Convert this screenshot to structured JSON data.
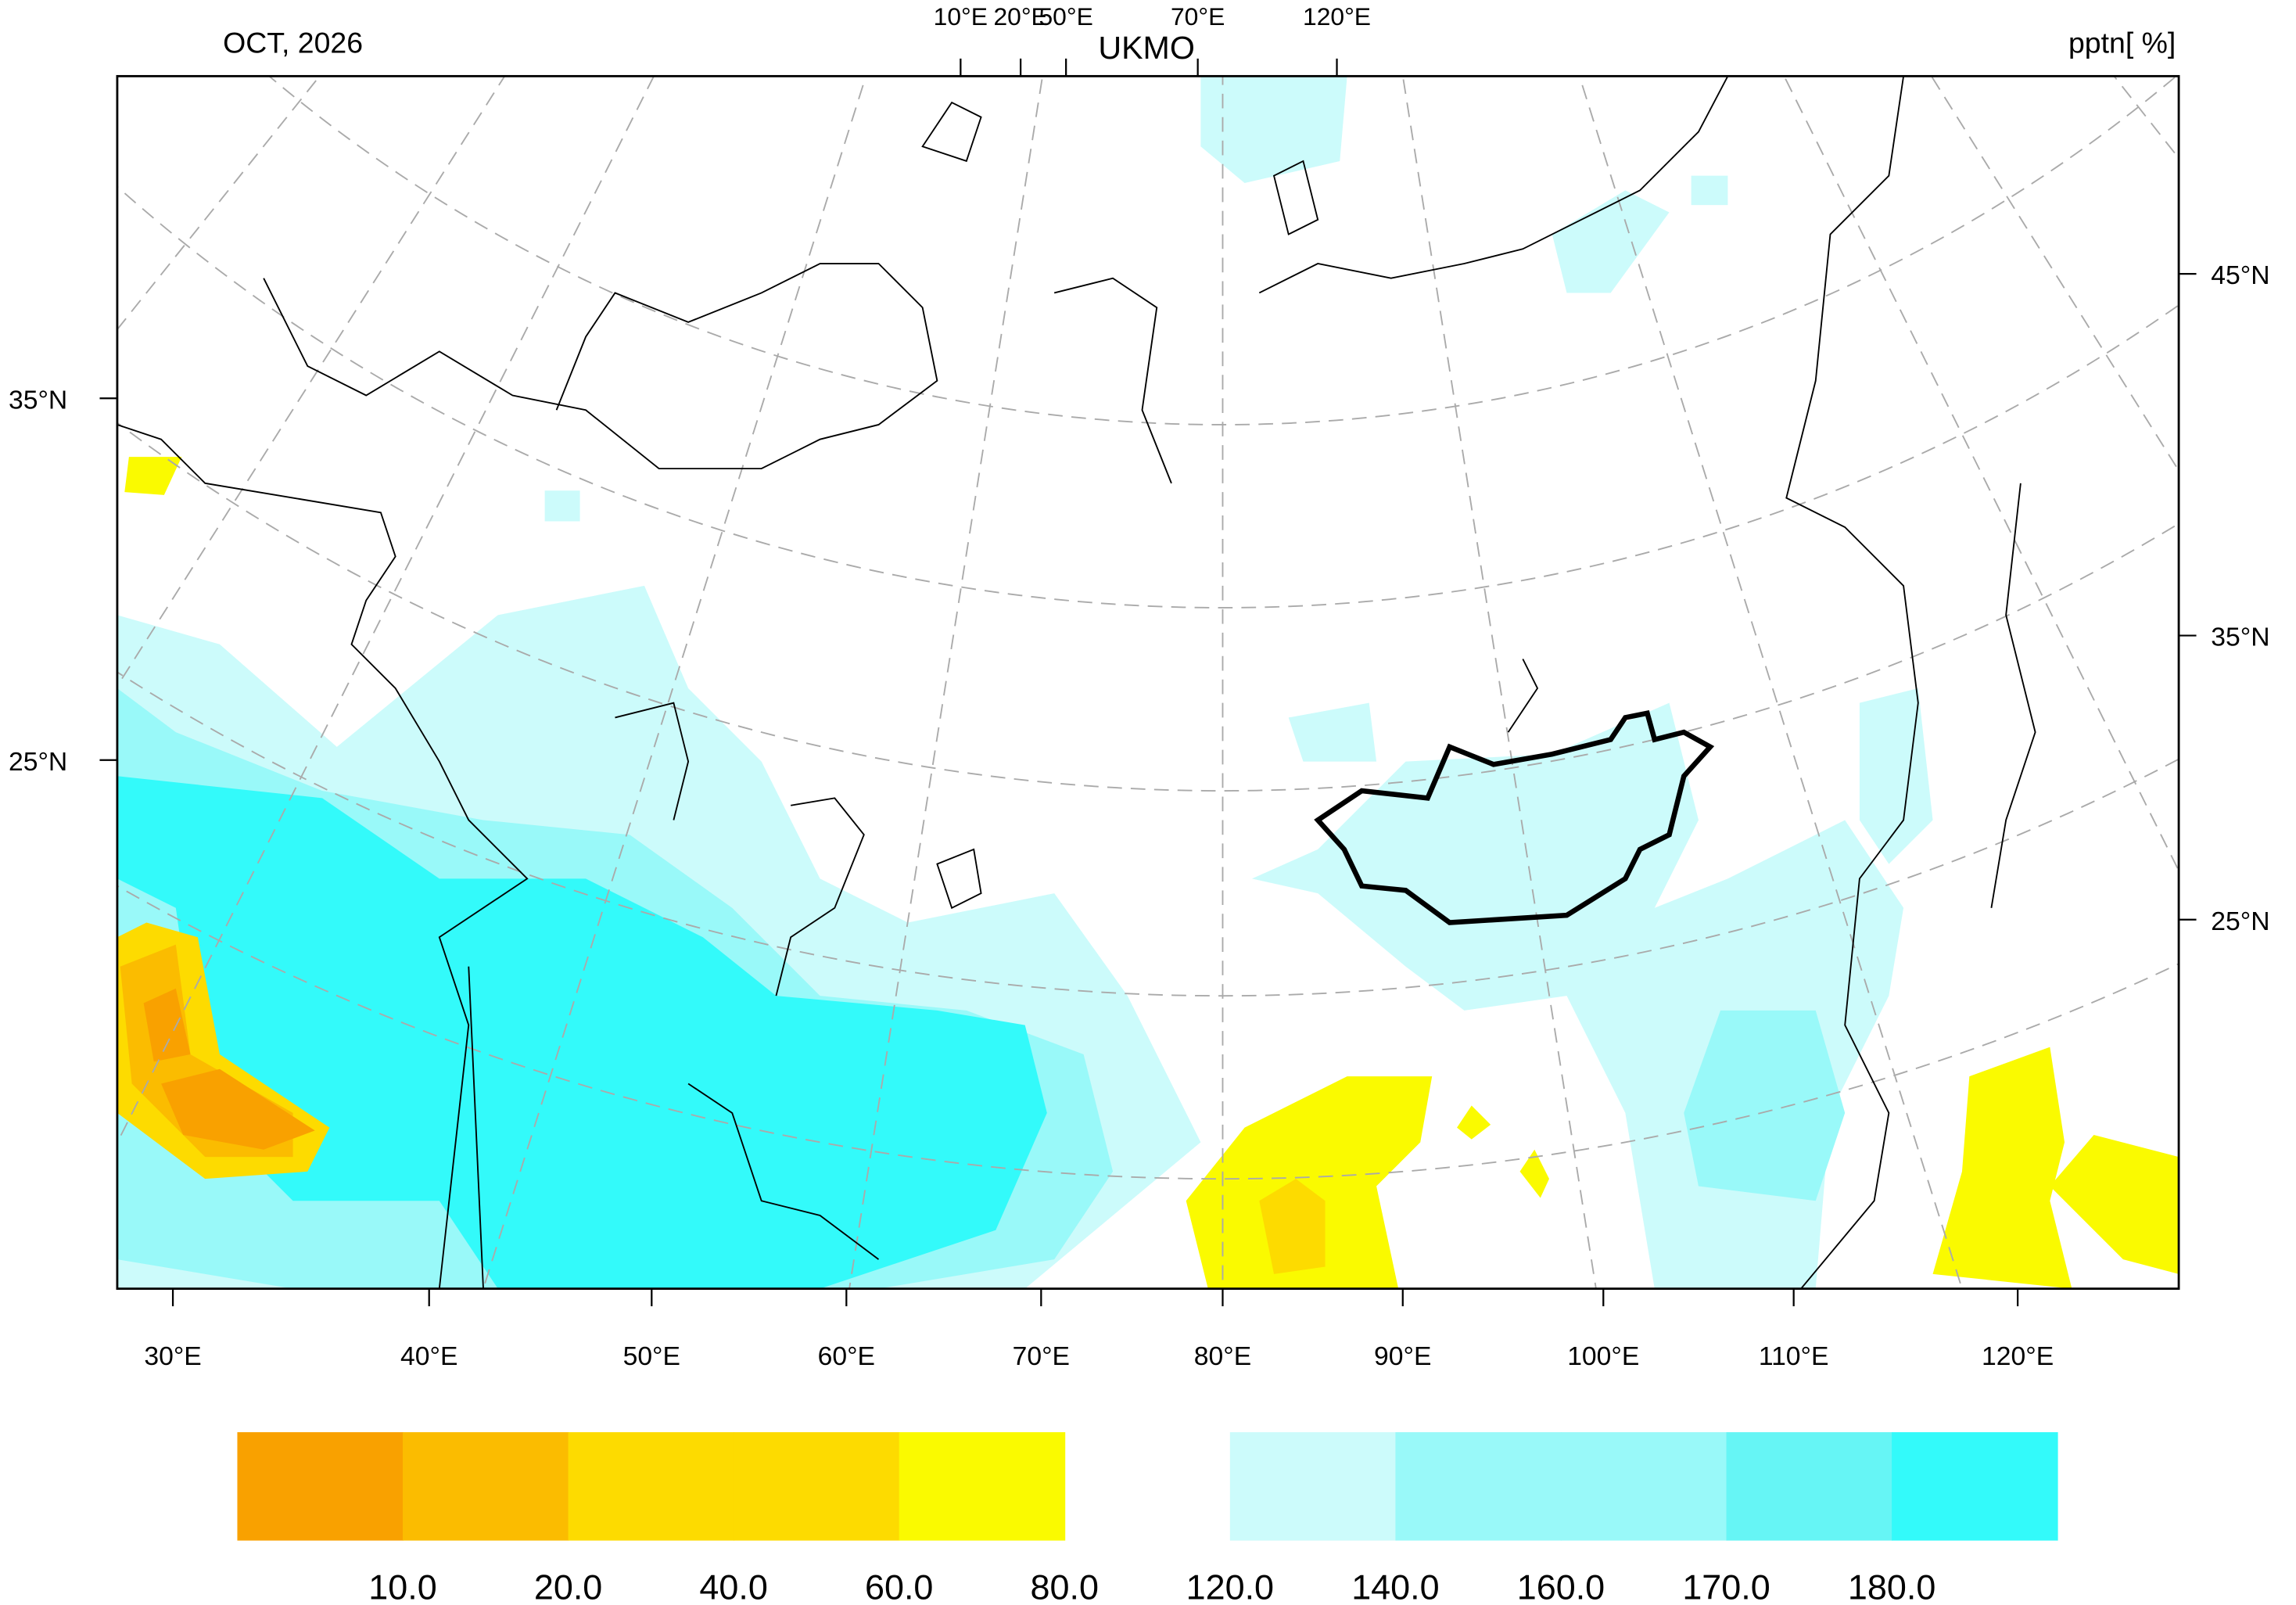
{
  "header": {
    "date": "OCT, 2026",
    "model": "UKMO",
    "unit": "pptn[ %]"
  },
  "top_axis_labels": [
    "10°E",
    "20°E",
    "50°E",
    "70°E",
    "120°E"
  ],
  "left_axis_labels": [
    "35°N",
    "25°N"
  ],
  "right_axis_labels": [
    "45°N",
    "35°N",
    "25°N"
  ],
  "bottom_axis_labels": [
    "30°E",
    "40°E",
    "50°E",
    "60°E",
    "70°E",
    "80°E",
    "90°E",
    "100°E",
    "110°E",
    "120°E"
  ],
  "colorbar": {
    "dry": {
      "colors": [
        "#f9a100",
        "#fbbc00",
        "#fddb00",
        "#fddb00",
        "#fafa00"
      ],
      "labels": [
        "10.0",
        "20.0",
        "40.0",
        "60.0",
        "80.0"
      ]
    },
    "wet": {
      "colors": [
        "#ccfbfb",
        "#99f9f9",
        "#99f9f9",
        "#66f5f5",
        "#33fafa"
      ],
      "labels": [
        "120.0",
        "140.0",
        "160.0",
        "170.0",
        "180.0"
      ]
    }
  }
}
